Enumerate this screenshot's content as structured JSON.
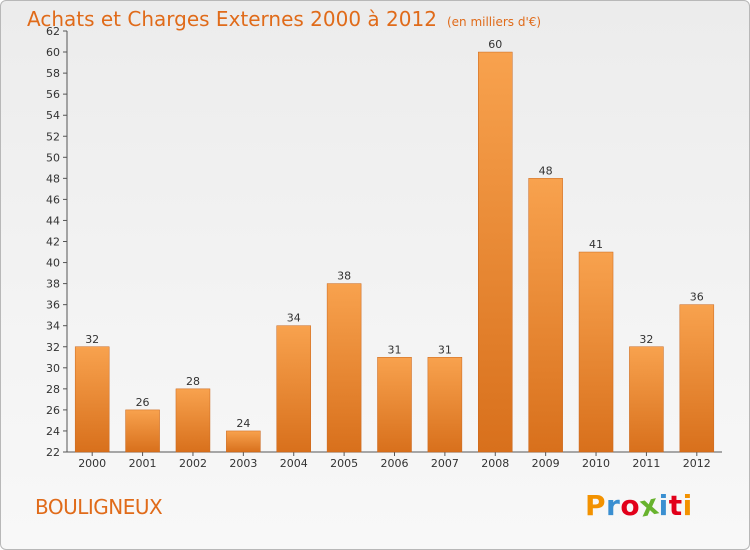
{
  "header": {
    "title": "Achats et Charges Externes 2000 à 2012",
    "subtitle": "(en milliers d'€)"
  },
  "footer": {
    "place": "BOULIGNEUX",
    "logo": "Proxiti"
  },
  "colors": {
    "title": "#e06b1a",
    "bar_top": "#f8a24e",
    "bar_bottom": "#d8701c",
    "logo": [
      "#f39200",
      "#3a8fd1",
      "#e2001a",
      "#68b32e",
      "#3a8fd1",
      "#e2001a",
      "#f39200"
    ]
  },
  "chart_data": {
    "type": "bar",
    "title": "Achats et Charges Externes 2000 à 2012",
    "subtitle": "(en milliers d'€)",
    "categories": [
      "2000",
      "2001",
      "2002",
      "2003",
      "2004",
      "2005",
      "2006",
      "2007",
      "2008",
      "2009",
      "2010",
      "2011",
      "2012"
    ],
    "values": [
      32,
      26,
      28,
      24,
      34,
      38,
      31,
      31,
      60,
      48,
      41,
      32,
      36
    ],
    "xlabel": "",
    "ylabel": "",
    "ylim": [
      22,
      62
    ],
    "yticks": [
      22,
      24,
      26,
      28,
      30,
      32,
      34,
      36,
      38,
      40,
      42,
      44,
      46,
      48,
      50,
      52,
      54,
      56,
      58,
      60,
      62
    ],
    "grid": false,
    "legend": "none"
  }
}
